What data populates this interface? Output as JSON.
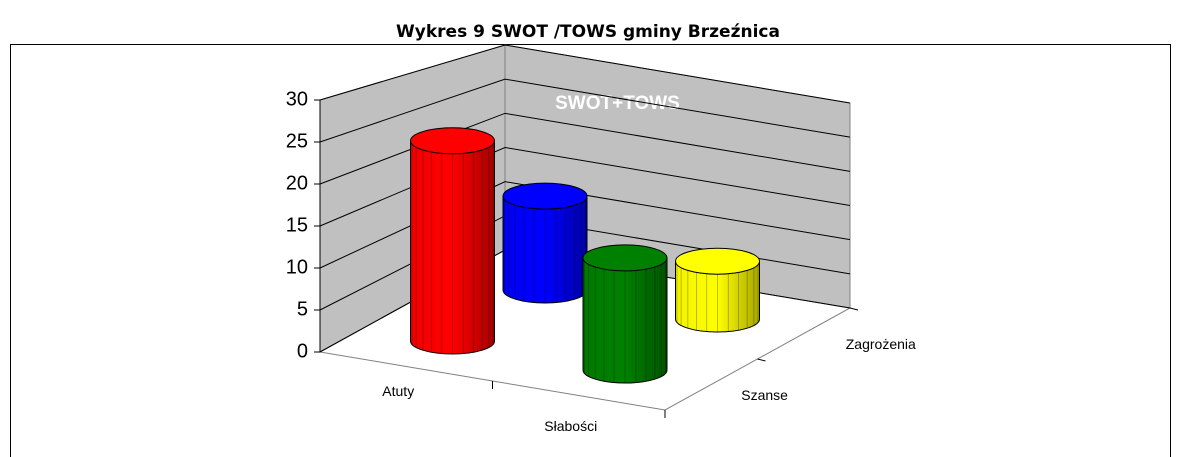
{
  "chart_data": {
    "type": "bar3d",
    "title": "Wykres 9 SWOT /TOWS gminy Brzeźnica",
    "subtitle": "SWOT+TOWS",
    "categories": [
      "Atuty",
      "Słabości"
    ],
    "series": [
      {
        "name": "Szanse",
        "colors": [
          "#ff0000",
          "#008000"
        ],
        "values": [
          25,
          14
        ]
      },
      {
        "name": "Zagrożenia",
        "colors": [
          "#0000ff",
          "#ffff00"
        ],
        "values": [
          13,
          8
        ]
      }
    ],
    "ylim": [
      0,
      30
    ],
    "yticks": [
      0,
      5,
      10,
      15,
      20,
      25,
      30
    ],
    "grid": true
  }
}
